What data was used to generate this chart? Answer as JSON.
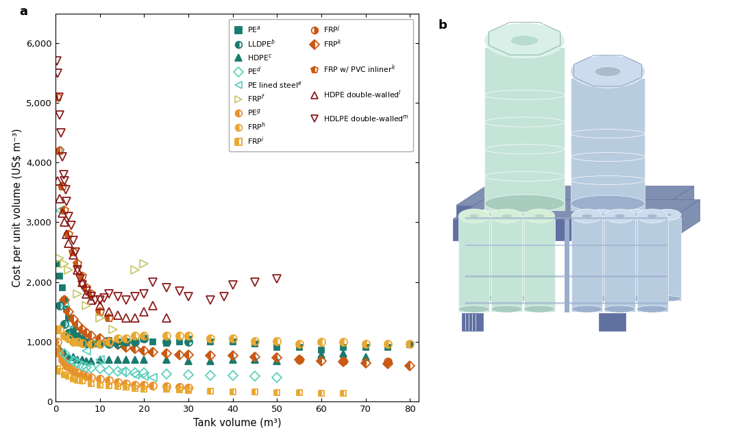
{
  "xlabel": "Tank volume (m³)",
  "ylabel": "Cost per unit volume (US$ m⁻³)",
  "xlim": [
    0,
    82
  ],
  "ylim": [
    0,
    6500
  ],
  "xticks": [
    0,
    10,
    20,
    30,
    40,
    50,
    60,
    70,
    80
  ],
  "yticks": [
    0,
    1000,
    2000,
    3000,
    4000,
    5000,
    6000
  ],
  "series": {
    "PE_a": {
      "label": "PE$^a$",
      "color": "#1a7a6e",
      "marker": "s",
      "fillstyle": "full",
      "markersize": 6,
      "x": [
        0.5,
        1.0,
        1.5,
        2.0,
        2.5,
        3.0,
        4.0,
        5.0,
        6.0,
        7.0,
        8.0,
        9.0,
        10.0,
        12.0,
        14.0,
        16.0,
        18.0,
        20.0,
        22.0,
        25.0,
        28.0,
        30.0,
        35.0,
        40.0,
        45.0,
        50.0,
        55.0,
        60.0,
        65.0,
        70.0,
        75.0,
        80.0
      ],
      "y": [
        2300,
        2100,
        1900,
        1700,
        1550,
        1400,
        1200,
        1100,
        1050,
        1000,
        970,
        960,
        980,
        1020,
        1000,
        1000,
        1000,
        1040,
        1000,
        970,
        1000,
        1040,
        1000,
        1000,
        960,
        900,
        900,
        860,
        900,
        900,
        900,
        950
      ]
    },
    "HDPE_c": {
      "label": "HDPE$^c$",
      "color": "#1a7a6e",
      "marker": "^",
      "fillstyle": "full",
      "markersize": 7,
      "x": [
        1.0,
        2.0,
        3.0,
        4.0,
        5.0,
        6.0,
        7.0,
        8.0,
        10.0,
        12.0,
        14.0,
        16.0,
        18.0,
        20.0,
        25.0,
        30.0,
        35.0,
        40.0,
        45.0,
        50.0,
        60.0,
        65.0,
        70.0
      ],
      "y": [
        880,
        800,
        750,
        740,
        700,
        700,
        680,
        680,
        700,
        700,
        700,
        700,
        700,
        700,
        700,
        680,
        680,
        700,
        700,
        680,
        780,
        800,
        750
      ]
    },
    "PE_lined_steel_e": {
      "label": "PE lined steel$^e$",
      "color": "#5ecfbd",
      "marker": "<",
      "fillstyle": "none",
      "markersize": 8,
      "x": [
        0.5,
        1.0,
        2.0,
        3.0,
        5.0,
        7.0,
        10.0,
        15.0,
        18.0,
        20.0,
        22.0
      ],
      "y": [
        4200,
        3200,
        1600,
        1300,
        1000,
        850,
        700,
        500,
        450,
        420,
        400
      ]
    },
    "PE_g": {
      "label": "PE$^g$",
      "color": "#e8902a",
      "marker": "o",
      "fillstyle": "left",
      "markersize": 8,
      "x": [
        0.3,
        0.5,
        0.8,
        1.0,
        1.5,
        2.0,
        2.5,
        3.0,
        3.5,
        4.0,
        5.0,
        6.0,
        7.0,
        8.0,
        10.0,
        12.0,
        14.0,
        16.0,
        18.0,
        20.0,
        22.0,
        25.0,
        28.0,
        30.0
      ],
      "y": [
        1200,
        1000,
        850,
        800,
        700,
        650,
        600,
        580,
        550,
        500,
        480,
        450,
        420,
        400,
        380,
        350,
        320,
        300,
        280,
        270,
        260,
        250,
        240,
        230
      ]
    },
    "FRP_i": {
      "label": "FRP$^i$",
      "color": "#e8a830",
      "marker": "s",
      "fillstyle": "left",
      "markersize": 6,
      "x": [
        0.5,
        1.0,
        2.0,
        3.0,
        4.0,
        5.0,
        6.0,
        8.0,
        10.0,
        12.0,
        14.0,
        16.0,
        18.0,
        20.0,
        25.0,
        28.0,
        30.0,
        35.0,
        40.0,
        45.0,
        50.0,
        55.0,
        60.0,
        65.0
      ],
      "y": [
        550,
        500,
        450,
        420,
        380,
        360,
        340,
        300,
        280,
        260,
        250,
        235,
        220,
        210,
        200,
        190,
        180,
        170,
        165,
        158,
        150,
        145,
        140,
        138
      ]
    },
    "FRP_k": {
      "label": "FRP$^k$",
      "color": "#c85a14",
      "marker": "D",
      "fillstyle": "left",
      "markersize": 7,
      "x": [
        2.0,
        3.0,
        4.0,
        5.0,
        6.0,
        7.0,
        8.0,
        10.0,
        12.0,
        14.0,
        16.0,
        18.0,
        20.0,
        22.0,
        25.0,
        28.0,
        30.0,
        35.0,
        40.0,
        45.0,
        50.0,
        55.0,
        60.0,
        65.0,
        70.0,
        75.0,
        80.0
      ],
      "y": [
        1700,
        1500,
        1380,
        1280,
        1200,
        1150,
        1100,
        1050,
        1000,
        950,
        900,
        880,
        850,
        820,
        800,
        780,
        780,
        770,
        770,
        750,
        730,
        700,
        680,
        660,
        640,
        630,
        600
      ]
    },
    "FRP_w_PVC_k": {
      "label": "FRP w/ PVC inliner$^k$",
      "color": "#c85a14",
      "marker": "p",
      "fillstyle": "left",
      "markersize": 9,
      "x": [
        0.5,
        1.0,
        1.5,
        2.0,
        3.0,
        4.0,
        5.0,
        6.0,
        7.0,
        8.0,
        10.0,
        12.0
      ],
      "y": [
        5100,
        4200,
        3600,
        3200,
        2800,
        2500,
        2300,
        2100,
        1900,
        1800,
        1500,
        1400
      ]
    },
    "HDPE_double_l": {
      "label": "HDPE double-walled$^l$",
      "color": "#8b1a1a",
      "marker": "^",
      "fillstyle": "none",
      "markersize": 9,
      "x": [
        0.5,
        1.0,
        1.5,
        2.0,
        2.5,
        3.0,
        4.0,
        5.0,
        6.0,
        7.0,
        8.0,
        10.0,
        12.0,
        14.0,
        16.0,
        18.0,
        20.0,
        22.0,
        25.0
      ],
      "y": [
        3700,
        3400,
        3150,
        3000,
        2800,
        2650,
        2450,
        2200,
        2000,
        1800,
        1700,
        1600,
        1500,
        1450,
        1400,
        1400,
        1500,
        1600,
        1400
      ]
    },
    "HDLPE_double_m": {
      "label": "HDLPE double-walled$^m$",
      "color": "#8b1a1a",
      "marker": "v",
      "fillstyle": "none",
      "markersize": 9,
      "x": [
        0.3,
        0.5,
        0.8,
        1.0,
        1.2,
        1.5,
        1.8,
        2.0,
        2.3,
        2.5,
        3.0,
        3.5,
        4.0,
        4.5,
        5.0,
        5.5,
        6.0,
        7.0,
        8.0,
        9.0,
        10.0,
        11.0,
        12.0,
        14.0,
        16.0,
        18.0,
        20.0,
        22.0,
        25.0,
        28.0,
        30.0,
        35.0,
        38.0,
        40.0,
        45.0,
        50.0
      ],
      "y": [
        5700,
        5500,
        5100,
        4800,
        4500,
        4100,
        3800,
        3700,
        3550,
        3350,
        3100,
        2950,
        2700,
        2500,
        2200,
        2050,
        1950,
        1850,
        1750,
        1700,
        1700,
        1730,
        1800,
        1750,
        1700,
        1750,
        1800,
        2000,
        1900,
        1850,
        1750,
        1700,
        1750,
        1950,
        2000,
        2050
      ]
    },
    "LLDPE_b": {
      "label": "LLDPE$^b$",
      "color": "#1a7a6e",
      "marker": "o",
      "fillstyle": "left",
      "markersize": 8,
      "x": [
        1.0,
        2.0,
        3.0,
        4.0,
        5.0,
        6.0,
        7.0,
        8.0,
        10.0,
        12.0,
        14.0,
        16.0,
        18.0,
        20.0,
        25.0,
        30.0
      ],
      "y": [
        1600,
        1300,
        1150,
        1100,
        1050,
        1000,
        970,
        960,
        960,
        960,
        960,
        1000,
        1000,
        1050,
        1000,
        1000
      ]
    },
    "PE_d": {
      "label": "PE$^d$",
      "color": "#5ecfbd",
      "marker": "D",
      "fillstyle": "none",
      "markersize": 7,
      "x": [
        2.0,
        3.0,
        4.0,
        5.0,
        6.0,
        7.0,
        8.0,
        10.0,
        12.0,
        14.0,
        16.0,
        18.0,
        20.0,
        25.0,
        30.0,
        35.0,
        40.0,
        45.0,
        50.0
      ],
      "y": [
        800,
        720,
        680,
        640,
        600,
        575,
        560,
        545,
        520,
        500,
        490,
        480,
        480,
        460,
        450,
        440,
        430,
        420,
        400
      ]
    },
    "FRP_f": {
      "label": "FRP$^f$",
      "color": "#c8c870",
      "marker": ">",
      "fillstyle": "none",
      "markersize": 8,
      "x": [
        1.0,
        2.0,
        3.0,
        5.0,
        7.0,
        10.0,
        13.0,
        18.0,
        20.0
      ],
      "y": [
        2400,
        2300,
        2200,
        1800,
        1600,
        1400,
        1200,
        2200,
        2300
      ]
    },
    "FRP_h": {
      "label": "FRP$^h$",
      "color": "#e8a830",
      "marker": "o",
      "fillstyle": "left",
      "markersize": 8,
      "x": [
        1.0,
        2.0,
        3.0,
        4.0,
        5.0,
        6.0,
        8.0,
        10.0,
        12.0,
        14.0,
        16.0,
        18.0,
        20.0,
        25.0,
        28.0,
        30.0,
        35.0,
        40.0,
        45.0,
        50.0,
        55.0,
        60.0,
        65.0,
        70.0,
        75.0,
        80.0
      ],
      "y": [
        1200,
        1100,
        1050,
        1000,
        1000,
        980,
        960,
        960,
        1000,
        1050,
        1050,
        1100,
        1100,
        1100,
        1100,
        1100,
        1060,
        1060,
        1010,
        1010,
        960,
        1000,
        1000,
        960,
        960,
        960
      ]
    },
    "FRP_j": {
      "label": "FRP$^j$",
      "color": "#c85a14",
      "marker": "o",
      "fillstyle": "right",
      "markersize": 8,
      "x": [
        55.0,
        65.0,
        75.0
      ],
      "y": [
        700,
        680,
        660
      ]
    }
  },
  "legend_col1": [
    "PE_a",
    "HDPE_c",
    "PE_lined_steel_e",
    "PE_g",
    "FRP_i",
    "FRP_k",
    "FRP_w_PVC_k",
    "HDPE_double_l",
    "HDLPE_double_m"
  ],
  "legend_col2": [
    "LLDPE_b",
    "PE_d",
    "FRP_f",
    "FRP_h",
    "FRP_j"
  ],
  "tank_colors": {
    "green_light": "#c8e8e0",
    "blue_light": "#b8cce0",
    "platform": "#8090b0",
    "platform_dark": "#6070a0",
    "metal": "#9aadcc"
  }
}
